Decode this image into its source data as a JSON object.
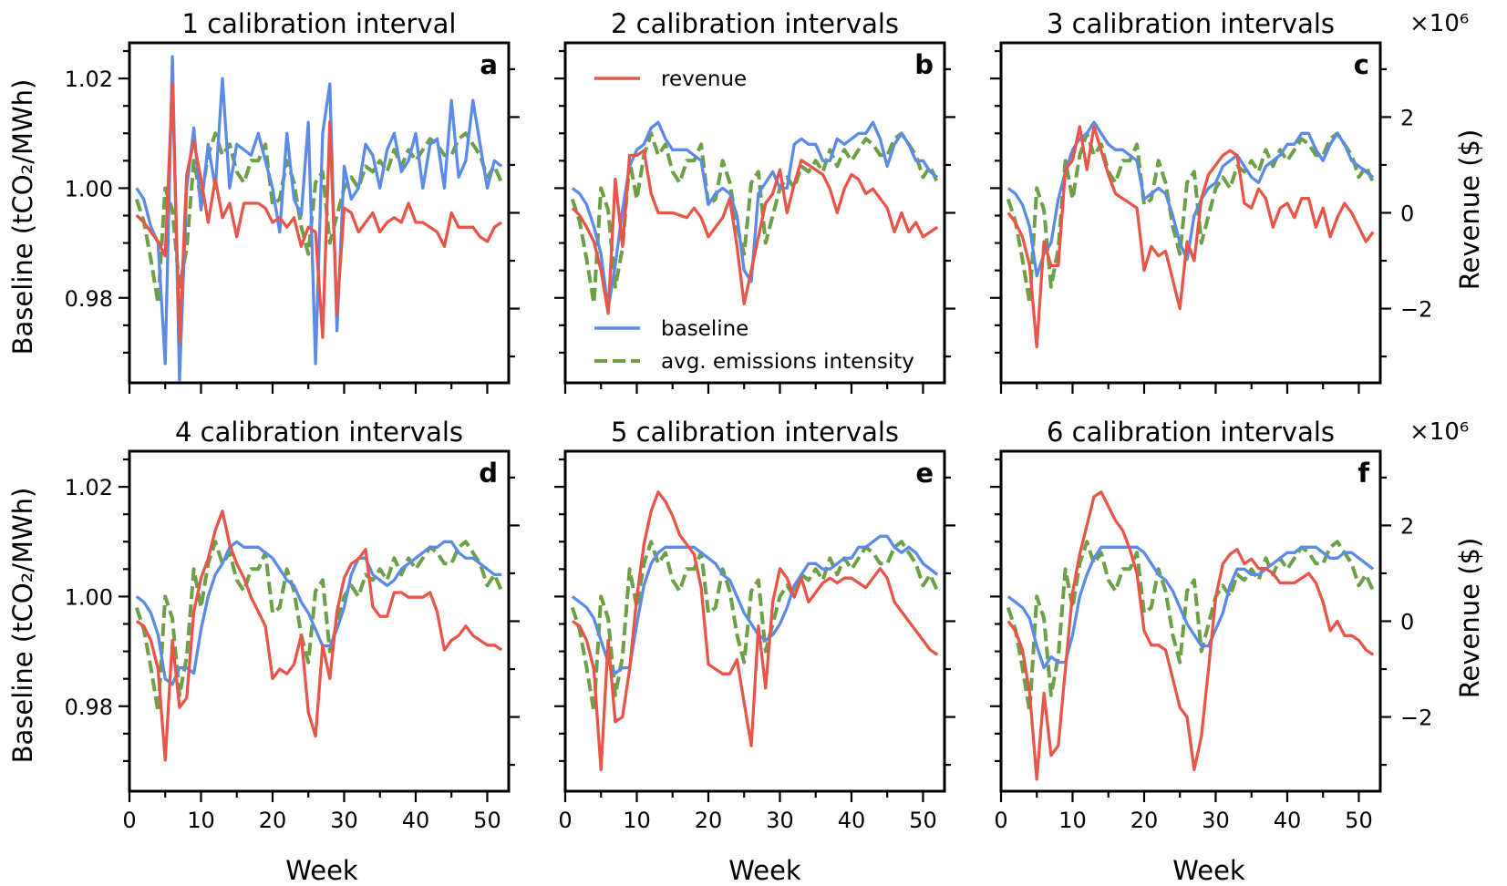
{
  "figure": {
    "x_label": "Week",
    "y_label_left": "Baseline (tCO₂/MWh)",
    "y_label_right": "Revenue ($)",
    "right_axis_multiplier": "×10⁶",
    "legend": {
      "revenue": "revenue",
      "baseline": "baseline",
      "emissions": "avg. emissions intensity"
    },
    "colors": {
      "revenue": "#e8564a",
      "baseline": "#5b8be6",
      "emissions": "#6c9f46"
    }
  },
  "chart_data": {
    "type": "line",
    "layout": "2x3 grid of panels sharing axes",
    "x_range": [
      0,
      53
    ],
    "x_ticks": [
      0,
      10,
      20,
      30,
      40,
      50
    ],
    "y_left_range": [
      0.9645,
      1.0265
    ],
    "y_left_ticks": [
      0.98,
      1.0,
      1.02
    ],
    "y_right_range": [
      -3.55,
      3.55
    ],
    "y_right_ticks": [
      -2,
      0,
      2
    ],
    "y_right_scale": "x1e6 dollars",
    "weeks_start": 1,
    "emissions_intensity": [
      0.998,
      0.994,
      0.987,
      0.979,
      1.0,
      0.996,
      0.982,
      0.989,
      1.005,
      0.998,
      1.006,
      1.01,
      1.006,
      1.008,
      1.003,
      1.001,
      1.005,
      1.005,
      1.008,
      0.997,
      0.998,
      1.005,
      1.001,
      0.993,
      0.988,
      1.001,
      1.003,
      0.99,
      0.995,
      1.0,
      1.002,
      1.0,
      1.004,
      1.003,
      1.005,
      1.003,
      1.007,
      1.004,
      1.007,
      1.005,
      1.007,
      1.009,
      1.008,
      1.006,
      1.006,
      1.009,
      1.01,
      1.008,
      1.006,
      1.002,
      1.004,
      1.001
    ],
    "panels": [
      {
        "title": "1 calibration interval",
        "letter": "a",
        "baseline": [
          1.0,
          0.998,
          0.993,
          0.99,
          0.968,
          1.024,
          0.965,
          1.0,
          1.011,
          0.996,
          1.008,
          1.0,
          1.02,
          1.0,
          1.008,
          1.007,
          1.006,
          1.01,
          1.005,
          1.0,
          0.992,
          1.01,
          0.998,
          0.995,
          1.012,
          0.968,
          1.01,
          1.019,
          0.974,
          1.004,
          0.998,
          1.0,
          1.008,
          1.006,
          1.0,
          1.007,
          1.01,
          1.003,
          1.005,
          1.01,
          1.0,
          1.008,
          1.009,
          1.0,
          1.016,
          1.002,
          1.005,
          1.016,
          1.008,
          1.0,
          1.005,
          1.004
        ],
        "revenue": [
          -0.05,
          -0.2,
          -0.4,
          -0.6,
          -0.9,
          2.7,
          -2.7,
          0.8,
          1.5,
          0.7,
          -0.2,
          0.7,
          -0.1,
          0.2,
          -0.5,
          0.2,
          0.2,
          0.2,
          0.1,
          -0.2,
          -0.1,
          -0.3,
          -0.1,
          -0.7,
          -0.3,
          -0.4,
          -2.6,
          1.9,
          -2.1,
          0.1,
          0.0,
          -0.4,
          -0.2,
          0.0,
          -0.4,
          -0.2,
          -0.1,
          -0.2,
          0.2,
          -0.2,
          -0.2,
          -0.3,
          -0.4,
          -0.7,
          0.0,
          -0.3,
          -0.3,
          -0.3,
          -0.5,
          -0.6,
          -0.3,
          -0.2
        ]
      },
      {
        "title": "2 calibration intervals",
        "letter": "b",
        "baseline": [
          1.0,
          0.999,
          0.997,
          0.993,
          0.988,
          0.978,
          0.986,
          0.996,
          1.004,
          1.007,
          1.008,
          1.011,
          1.012,
          1.009,
          1.007,
          1.007,
          1.007,
          1.006,
          1.005,
          0.997,
          0.999,
          1.0,
          0.999,
          0.995,
          0.985,
          0.983,
          0.999,
          1.001,
          1.003,
          1.0,
          1.0,
          1.008,
          1.009,
          1.008,
          1.008,
          1.005,
          1.005,
          1.009,
          1.008,
          1.009,
          1.01,
          1.01,
          1.012,
          1.009,
          1.004,
          1.008,
          1.01,
          1.008,
          1.005,
          1.005,
          1.003,
          1.002
        ],
        "revenue": [
          0.1,
          -0.05,
          -0.3,
          -0.6,
          -1.2,
          -2.1,
          0.7,
          -0.7,
          1.2,
          1.2,
          1.3,
          0.4,
          0.0,
          0.0,
          0.0,
          -0.05,
          -0.1,
          0.1,
          -0.1,
          -0.5,
          -0.3,
          -0.1,
          0.3,
          -0.7,
          -1.9,
          -1.2,
          -0.5,
          0.2,
          0.4,
          0.9,
          0.0,
          0.6,
          1.1,
          1.0,
          0.9,
          0.8,
          0.5,
          0.0,
          0.5,
          0.8,
          0.7,
          0.4,
          0.5,
          0.3,
          0.1,
          -0.4,
          0.0,
          -0.4,
          -0.2,
          -0.5,
          -0.4,
          -0.3
        ]
      },
      {
        "title": "3 calibration intervals",
        "letter": "c",
        "baseline": [
          1.0,
          0.999,
          0.997,
          0.993,
          0.984,
          0.988,
          0.99,
          0.998,
          1.003,
          1.007,
          1.009,
          1.01,
          1.012,
          1.01,
          1.008,
          1.007,
          1.007,
          1.006,
          1.005,
          0.998,
          0.999,
          1.0,
          0.999,
          0.995,
          0.99,
          0.987,
          0.995,
          0.998,
          1.0,
          1.001,
          1.004,
          1.005,
          1.006,
          1.004,
          1.002,
          1.001,
          1.004,
          1.005,
          1.006,
          1.008,
          1.008,
          1.01,
          1.01,
          1.007,
          1.005,
          1.008,
          1.01,
          1.008,
          1.005,
          1.004,
          1.003,
          1.002
        ],
        "revenue": [
          0.0,
          -0.2,
          -0.5,
          -1.1,
          -2.8,
          -0.6,
          -1.1,
          -1.1,
          0.9,
          1.1,
          1.8,
          0.9,
          1.8,
          1.3,
          0.8,
          0.4,
          0.3,
          0.2,
          0.1,
          -1.2,
          -0.7,
          -0.9,
          -0.8,
          -1.4,
          -2.0,
          -0.6,
          -1.0,
          0.3,
          0.8,
          1.0,
          1.2,
          1.3,
          1.2,
          0.2,
          0.1,
          0.5,
          0.3,
          -0.3,
          0.1,
          0.2,
          -0.1,
          0.3,
          0.3,
          -0.3,
          0.1,
          -0.5,
          -0.1,
          0.2,
          0.0,
          -0.3,
          -0.6,
          -0.4
        ]
      },
      {
        "title": "4 calibration intervals",
        "letter": "d",
        "baseline": [
          1.0,
          0.999,
          0.997,
          0.993,
          0.985,
          0.984,
          0.987,
          0.987,
          0.986,
          0.994,
          1.0,
          1.004,
          1.006,
          1.009,
          1.01,
          1.009,
          1.009,
          1.009,
          1.008,
          1.007,
          1.005,
          1.003,
          1.002,
          0.999,
          0.997,
          0.994,
          0.991,
          0.991,
          0.994,
          0.998,
          1.004,
          1.007,
          1.007,
          1.004,
          1.003,
          1.002,
          1.003,
          1.005,
          1.006,
          1.007,
          1.008,
          1.009,
          1.009,
          1.01,
          1.01,
          1.008,
          1.007,
          1.007,
          1.006,
          1.005,
          1.004,
          1.004
        ],
        "revenue": [
          0.0,
          -0.1,
          -0.4,
          -1.0,
          -2.9,
          -0.4,
          -1.8,
          -1.6,
          0.2,
          0.9,
          1.3,
          1.9,
          2.3,
          1.6,
          1.2,
          0.9,
          0.5,
          0.2,
          -0.1,
          -1.2,
          -1.0,
          -1.1,
          -0.9,
          -0.3,
          -1.9,
          -2.4,
          -0.5,
          -1.2,
          0.2,
          0.9,
          1.2,
          1.3,
          1.5,
          0.3,
          0.1,
          0.1,
          0.6,
          0.6,
          0.5,
          0.5,
          0.5,
          0.6,
          0.2,
          -0.6,
          -0.4,
          -0.3,
          -0.1,
          -0.3,
          -0.4,
          -0.5,
          -0.5,
          -0.6
        ]
      },
      {
        "title": "5 calibration intervals",
        "letter": "e",
        "baseline": [
          1.0,
          0.999,
          0.998,
          0.996,
          0.992,
          0.988,
          0.986,
          0.987,
          0.987,
          0.995,
          1.002,
          1.006,
          1.008,
          1.009,
          1.009,
          1.009,
          1.009,
          1.009,
          1.008,
          1.007,
          1.006,
          1.004,
          1.003,
          1.0,
          0.997,
          0.995,
          0.993,
          0.992,
          0.993,
          0.995,
          0.998,
          1.002,
          1.004,
          1.006,
          1.006,
          1.005,
          1.005,
          1.006,
          1.007,
          1.007,
          1.009,
          1.009,
          1.01,
          1.011,
          1.011,
          1.009,
          1.008,
          1.009,
          1.008,
          1.006,
          1.005,
          1.004
        ],
        "revenue": [
          0.0,
          -0.1,
          -0.4,
          -1.0,
          -3.1,
          -0.4,
          -2.1,
          -2.0,
          -1.0,
          0.5,
          1.6,
          2.3,
          2.7,
          2.5,
          2.2,
          1.8,
          1.6,
          1.4,
          0.7,
          -0.9,
          -1.0,
          -1.1,
          -1.1,
          -0.8,
          -1.7,
          -2.6,
          -0.1,
          -1.4,
          0.4,
          1.1,
          0.9,
          0.5,
          0.9,
          0.4,
          0.6,
          0.8,
          0.9,
          0.8,
          0.9,
          0.9,
          0.8,
          0.7,
          0.9,
          1.1,
          0.9,
          0.4,
          0.2,
          0.0,
          -0.2,
          -0.4,
          -0.6,
          -0.7
        ]
      },
      {
        "title": "6 calibration intervals",
        "letter": "f",
        "baseline": [
          1.0,
          0.999,
          0.998,
          0.996,
          0.991,
          0.987,
          0.989,
          0.988,
          0.988,
          0.993,
          1.0,
          1.004,
          1.007,
          1.009,
          1.009,
          1.009,
          1.009,
          1.009,
          1.009,
          1.008,
          1.006,
          1.004,
          1.003,
          1.001,
          0.998,
          0.995,
          0.993,
          0.991,
          0.991,
          0.994,
          0.997,
          1.002,
          1.005,
          1.005,
          1.004,
          1.004,
          1.005,
          1.006,
          1.007,
          1.008,
          1.008,
          1.009,
          1.009,
          1.009,
          1.008,
          1.007,
          1.007,
          1.008,
          1.008,
          1.007,
          1.006,
          1.005
        ],
        "revenue": [
          0.0,
          -0.2,
          -0.6,
          -1.5,
          -3.3,
          -1.5,
          -2.8,
          -2.6,
          -1.0,
          0.6,
          1.4,
          2.0,
          2.6,
          2.7,
          2.4,
          2.1,
          1.9,
          1.5,
          1.0,
          -0.2,
          -0.5,
          -0.5,
          -0.6,
          -1.2,
          -1.8,
          -2.0,
          -3.1,
          -2.4,
          -1.0,
          0.5,
          1.2,
          1.4,
          1.5,
          1.2,
          1.3,
          1.1,
          1.1,
          1.0,
          0.8,
          0.8,
          0.8,
          0.9,
          1.0,
          0.8,
          0.4,
          -0.2,
          0.0,
          -0.3,
          -0.3,
          -0.4,
          -0.6,
          -0.7
        ]
      }
    ]
  }
}
